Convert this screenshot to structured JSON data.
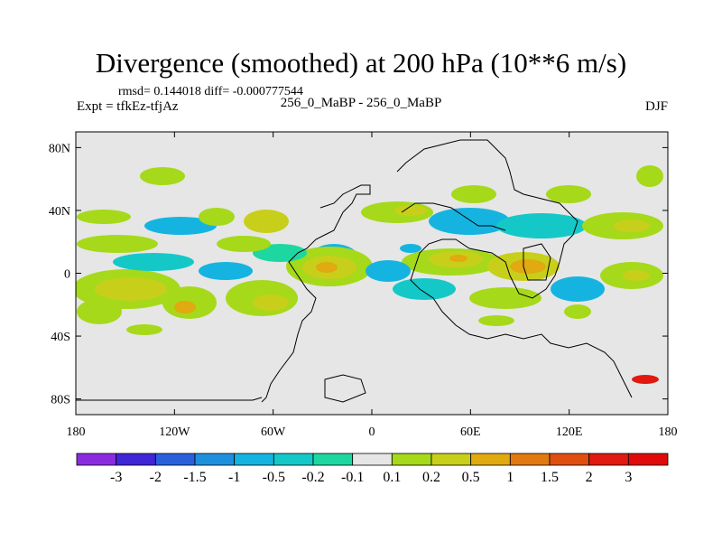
{
  "title": "Divergence (smoothed) at 200 hPa (10**6 m/s)",
  "stats_line": "rmsd= 0.144018 diff= -0.000777544",
  "experiment_line": "Expt = tfkEz-tfjAz",
  "cases_line": "256_0_MaBP - 256_0_MaBP",
  "season": "DJF",
  "map": {
    "lon_ticks": [
      "180",
      "120W",
      "60W",
      "0",
      "60E",
      "120E",
      "180"
    ],
    "lat_ticks": [
      "80N",
      "40N",
      "0",
      "40S",
      "80S"
    ],
    "background": "#e6e6e6"
  },
  "colorbar": {
    "labels": [
      "-3",
      "-2",
      "-1.5",
      "-1",
      "-0.5",
      "-0.2",
      "-0.1",
      "0.1",
      "0.2",
      "0.5",
      "1",
      "1.5",
      "2",
      "3"
    ],
    "colors": [
      "#8a2be2",
      "#3f26d6",
      "#2a60dc",
      "#1f90dc",
      "#15b4e0",
      "#15c8c8",
      "#1ed7a0",
      "#e6e6e6",
      "#a6d91a",
      "#c8cf1a",
      "#e0aa10",
      "#e07a10",
      "#e04e10",
      "#e01a10",
      "#e00a0a"
    ]
  }
}
